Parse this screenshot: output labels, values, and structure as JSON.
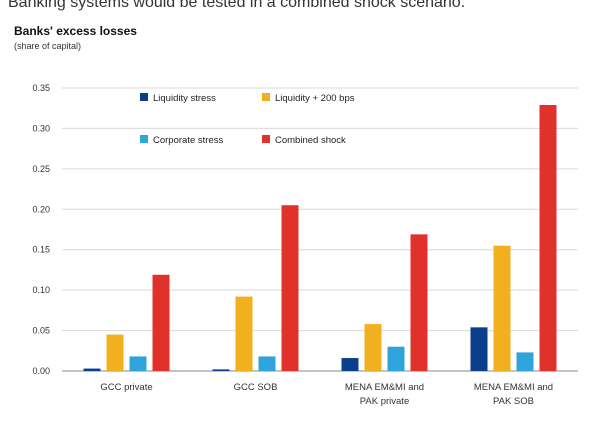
{
  "headline": "Banking systems would be tested in a combined shock scenario.",
  "chart_data": {
    "type": "bar",
    "title": "Banks' excess losses",
    "subtitle": "(share of capital)",
    "ylim": [
      0,
      0.35
    ],
    "yticks": [
      "0.35",
      "0.30",
      "0.25",
      "0.20",
      "0.15",
      "0.10",
      "0.05",
      "0.00"
    ],
    "ytick_values": [
      0.35,
      0.3,
      0.25,
      0.2,
      0.15,
      0.1,
      0.05,
      0.0
    ],
    "categories": [
      [
        "GCC private"
      ],
      [
        "GCC SOB"
      ],
      [
        "MENA EM&MI and",
        "PAK private"
      ],
      [
        "MENA EM&MI and",
        "PAK SOB"
      ]
    ],
    "series": [
      {
        "name": "Liquidity stress",
        "color": "#0b3f8c",
        "values": [
          0.003,
          0.002,
          0.016,
          0.054
        ]
      },
      {
        "name": "Liquidity + 200 bps",
        "color": "#f2b01e",
        "values": [
          0.045,
          0.092,
          0.058,
          0.155
        ]
      },
      {
        "name": "Corporate stress",
        "color": "#2ea3dc",
        "values": [
          0.018,
          0.018,
          0.03,
          0.023
        ]
      },
      {
        "name": "Combined shock",
        "color": "#e0312b",
        "values": [
          0.119,
          0.205,
          0.169,
          0.329
        ]
      }
    ],
    "grid": true,
    "legend": "top-center, two rows"
  }
}
